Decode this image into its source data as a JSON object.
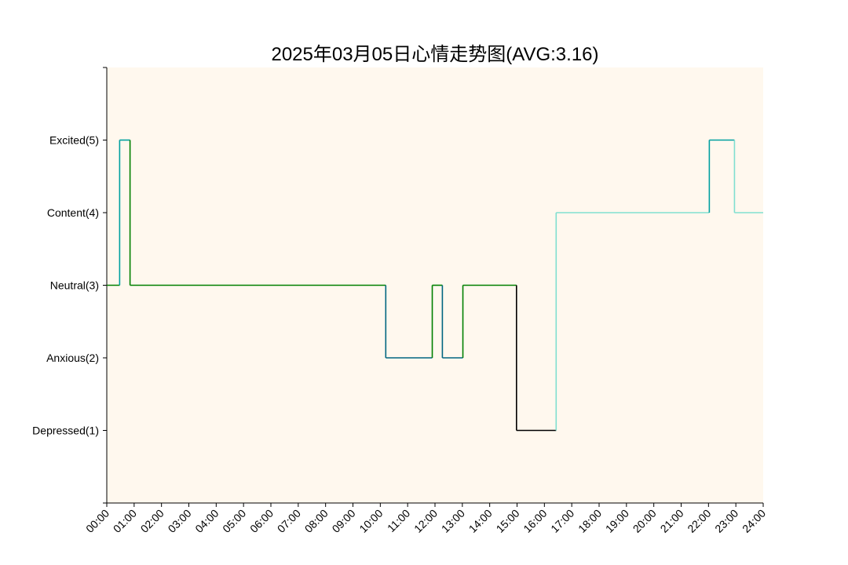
{
  "chart_data": {
    "type": "line",
    "step": true,
    "title": "2025年03月05日心情走势图(AVG:3.16)",
    "xlabel": "",
    "ylabel": "",
    "x_unit": "hours",
    "xlim": [
      0,
      24
    ],
    "ylim": [
      0,
      6
    ],
    "x_tick_labels": [
      "00:00",
      "01:00",
      "02:00",
      "03:00",
      "04:00",
      "05:00",
      "06:00",
      "07:00",
      "08:00",
      "09:00",
      "10:00",
      "11:00",
      "12:00",
      "13:00",
      "14:00",
      "15:00",
      "16:00",
      "17:00",
      "18:00",
      "19:00",
      "20:00",
      "21:00",
      "22:00",
      "23:00",
      "24:00"
    ],
    "y_ticks": [
      {
        "value": 1,
        "label": "Depressed(1)"
      },
      {
        "value": 2,
        "label": "Anxious(2)"
      },
      {
        "value": 3,
        "label": "Neutral(3)"
      },
      {
        "value": 4,
        "label": "Content(4)"
      },
      {
        "value": 5,
        "label": "Excited(5)"
      }
    ],
    "grid": false,
    "plot_background": "#fff8ee",
    "segments": [
      {
        "x0": 0.0,
        "x1": 0.47,
        "y": 3,
        "color": "#008000"
      },
      {
        "x0": 0.47,
        "x1": 0.85,
        "y": 5,
        "color": "#00a0a0"
      },
      {
        "x0": 0.85,
        "x1": 10.2,
        "y": 3,
        "color": "#008000"
      },
      {
        "x0": 10.2,
        "x1": 11.9,
        "y": 2,
        "color": "#006680"
      },
      {
        "x0": 11.9,
        "x1": 12.27,
        "y": 3,
        "color": "#008000"
      },
      {
        "x0": 12.27,
        "x1": 13.02,
        "y": 2,
        "color": "#006680"
      },
      {
        "x0": 13.02,
        "x1": 14.98,
        "y": 3,
        "color": "#008000"
      },
      {
        "x0": 14.98,
        "x1": 16.43,
        "y": 1,
        "color": "#000000"
      },
      {
        "x0": 16.43,
        "x1": 22.03,
        "y": 4,
        "color": "#80dfd0"
      },
      {
        "x0": 22.03,
        "x1": 22.95,
        "y": 5,
        "color": "#00a0a0"
      },
      {
        "x0": 22.95,
        "x1": 24.0,
        "y": 4,
        "color": "#80dfd0"
      }
    ]
  }
}
